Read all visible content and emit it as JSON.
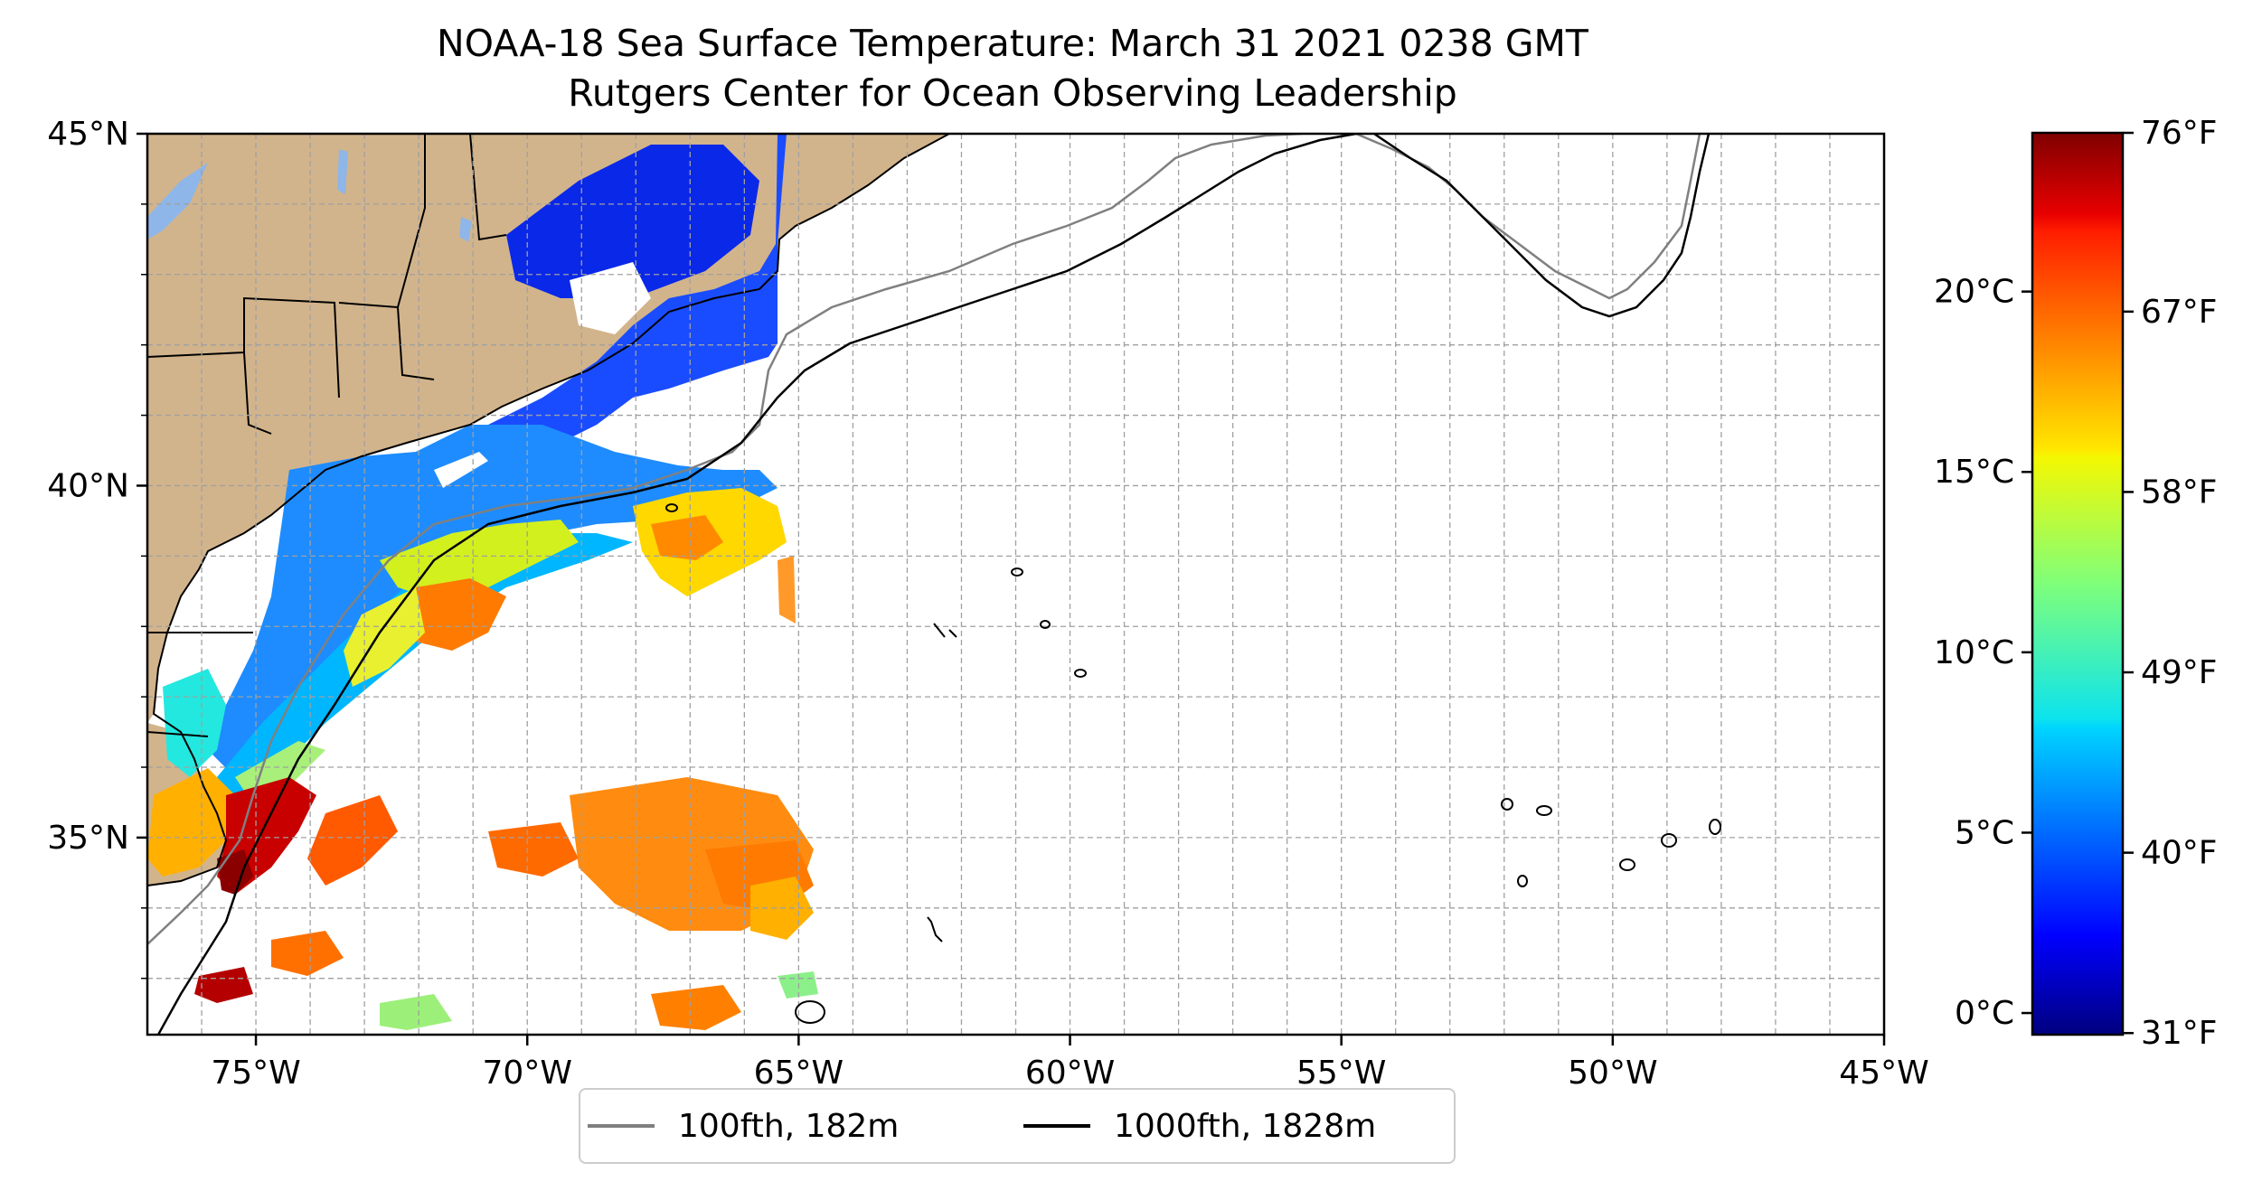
{
  "title": {
    "line1": "NOAA-18 Sea Surface Temperature: March 31 2021 0238 GMT",
    "line2": "Rutgers Center for Ocean Observing Leadership"
  },
  "map": {
    "extent": {
      "lon": [
        -77,
        -45
      ],
      "lat": [
        32.2,
        45
      ]
    },
    "lon_ticks": [
      {
        "value": -75,
        "label": "75°W"
      },
      {
        "value": -70,
        "label": "70°W"
      },
      {
        "value": -65,
        "label": "65°W"
      },
      {
        "value": -60,
        "label": "60°W"
      },
      {
        "value": -55,
        "label": "55°W"
      },
      {
        "value": -50,
        "label": "50°W"
      },
      {
        "value": -45,
        "label": "45°W"
      }
    ],
    "lat_ticks": [
      {
        "value": 45,
        "label": "45°N"
      },
      {
        "value": 40,
        "label": "40°N"
      },
      {
        "value": 35,
        "label": "35°N"
      }
    ],
    "gridlines": true,
    "land_color": "#d2b48c",
    "ocean_no_data_color": "#ffffff"
  },
  "colorbar": {
    "colormap": "jet",
    "range_c": [
      -0.6,
      24.4
    ],
    "celsius_ticks": [
      {
        "value": 0,
        "label": "0°C"
      },
      {
        "value": 5,
        "label": "5°C"
      },
      {
        "value": 10,
        "label": "10°C"
      },
      {
        "value": 15,
        "label": "15°C"
      },
      {
        "value": 20,
        "label": "20°C"
      }
    ],
    "fahrenheit_ticks": [
      {
        "value": 31,
        "label": "31°F"
      },
      {
        "value": 40,
        "label": "40°F"
      },
      {
        "value": 49,
        "label": "49°F"
      },
      {
        "value": 58,
        "label": "58°F"
      },
      {
        "value": 67,
        "label": "67°F"
      },
      {
        "value": 76,
        "label": "76°F"
      }
    ]
  },
  "legend": {
    "items": [
      {
        "label": "100fth, 182m",
        "color": "#808080"
      },
      {
        "label": "1000fth, 1828m",
        "color": "#000000"
      }
    ]
  }
}
